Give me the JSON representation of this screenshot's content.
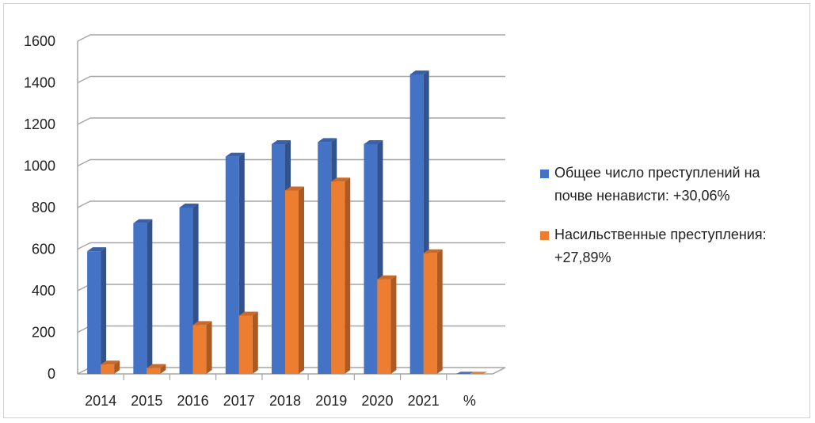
{
  "chart_data": {
    "type": "bar",
    "categories": [
      "2014",
      "2015",
      "2016",
      "2017",
      "2018",
      "2019",
      "2020",
      "2021",
      "%"
    ],
    "series": [
      {
        "name": "Общее число преступлений на почве ненависти: +30,06%",
        "color": "#4472C4",
        "values": [
          590,
          725,
          800,
          1045,
          1105,
          1115,
          1105,
          1440,
          0
        ]
      },
      {
        "name": "Насильственные преступления: +27,89%",
        "color": "#ED7D31",
        "values": [
          45,
          28,
          235,
          280,
          882,
          925,
          455,
          580,
          0
        ]
      }
    ],
    "ylim": [
      0,
      1600
    ],
    "yticks": [
      0,
      200,
      400,
      600,
      800,
      1000,
      1200,
      1400,
      1600
    ],
    "grid": true,
    "legend_position": "right",
    "view": "3d-clustered"
  }
}
